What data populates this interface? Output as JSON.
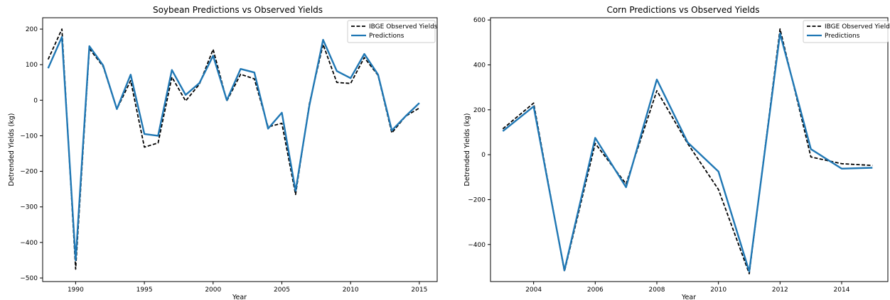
{
  "chart_data": [
    {
      "type": "line",
      "title": "Soybean Predictions vs Observed Yields",
      "xlabel": "Year",
      "ylabel": "Detrended Yields (kg)",
      "xlim": [
        1987.6,
        2016.3
      ],
      "ylim": [
        -510,
        232
      ],
      "xticks": [
        1990,
        1995,
        2000,
        2005,
        2010,
        2015
      ],
      "yticks": [
        -500,
        -400,
        -300,
        -200,
        -100,
        0,
        100,
        200
      ],
      "grid": false,
      "legend_position": "top-right",
      "x": [
        1988,
        1989,
        1990,
        1991,
        1992,
        1993,
        1994,
        1995,
        1996,
        1997,
        1998,
        1999,
        2000,
        2001,
        2002,
        2003,
        2004,
        2005,
        2006,
        2007,
        2008,
        2009,
        2010,
        2011,
        2012,
        2013,
        2014,
        2015
      ],
      "series": [
        {
          "name": "IBGE Observed Yields",
          "color": "#000000",
          "style": "dashed",
          "values": [
            115,
            200,
            -475,
            145,
            95,
            -25,
            55,
            -132,
            -120,
            65,
            -2,
            45,
            143,
            -2,
            73,
            60,
            -75,
            -65,
            -265,
            -10,
            157,
            50,
            47,
            120,
            70,
            -92,
            -45,
            -22
          ]
        },
        {
          "name": "Predictions",
          "color": "#1f77b4",
          "style": "solid",
          "values": [
            90,
            178,
            -450,
            152,
            98,
            -25,
            72,
            -95,
            -100,
            85,
            15,
            48,
            125,
            0,
            88,
            78,
            -80,
            -35,
            -255,
            -15,
            170,
            82,
            62,
            130,
            72,
            -85,
            -45,
            -8
          ]
        }
      ]
    },
    {
      "type": "line",
      "title": "Corn Predictions vs Observed Yields",
      "xlabel": "Year",
      "ylabel": "Detrended Yields (kg)",
      "xlim": [
        2002.6,
        2015.5
      ],
      "ylim": [
        -565,
        610
      ],
      "xticks": [
        2004,
        2006,
        2008,
        2010,
        2012,
        2014
      ],
      "yticks": [
        -400,
        -200,
        0,
        200,
        400,
        600
      ],
      "grid": false,
      "legend_position": "top-right",
      "x": [
        2003,
        2004,
        2005,
        2006,
        2007,
        2008,
        2009,
        2010,
        2011,
        2012,
        2013,
        2014,
        2015
      ],
      "series": [
        {
          "name": "IBGE Observed Yields",
          "color": "#000000",
          "style": "dashed",
          "values": [
            115,
            230,
            -520,
            50,
            -130,
            285,
            50,
            -155,
            -530,
            560,
            -10,
            -40,
            -48
          ]
        },
        {
          "name": "Predictions",
          "color": "#1f77b4",
          "style": "solid",
          "values": [
            105,
            215,
            -515,
            75,
            -145,
            335,
            55,
            -75,
            -520,
            540,
            25,
            -62,
            -58
          ]
        }
      ]
    }
  ]
}
